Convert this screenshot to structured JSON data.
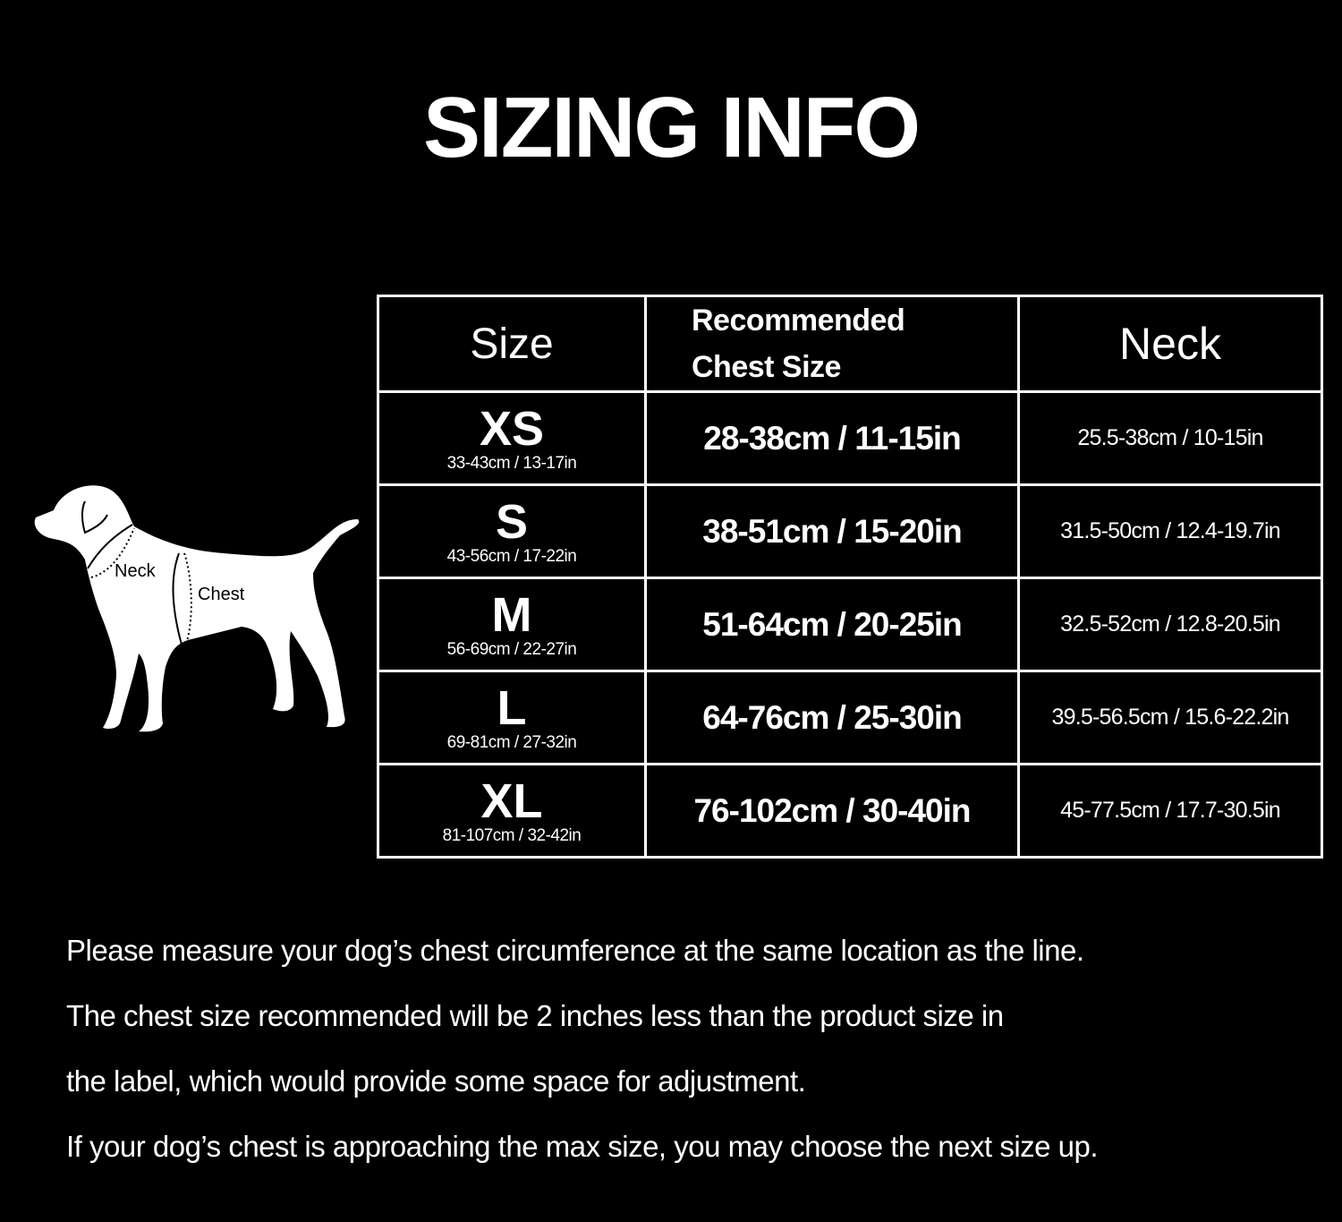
{
  "title": "SIZING INFO",
  "diagram": {
    "neck_label": "Neck",
    "chest_label": "Chest"
  },
  "table": {
    "headers": {
      "size": "Size",
      "chest_line1": "Recommended",
      "chest_line2": "Chest Size",
      "neck": "Neck"
    },
    "rows": [
      {
        "size": "XS",
        "product": "33-43cm / 13-17in",
        "chest": "28-38cm / 11-15in",
        "neck": "25.5-38cm / 10-15in"
      },
      {
        "size": "S",
        "product": "43-56cm / 17-22in",
        "chest": "38-51cm / 15-20in",
        "neck": "31.5-50cm / 12.4-19.7in"
      },
      {
        "size": "M",
        "product": "56-69cm / 22-27in",
        "chest": "51-64cm / 20-25in",
        "neck": "32.5-52cm / 12.8-20.5in"
      },
      {
        "size": "L",
        "product": "69-81cm / 27-32in",
        "chest": "64-76cm / 25-30in",
        "neck": "39.5-56.5cm / 15.6-22.2in"
      },
      {
        "size": "XL",
        "product": "81-107cm / 32-42in",
        "chest": "76-102cm / 30-40in",
        "neck": "45-77.5cm / 17.7-30.5in"
      }
    ]
  },
  "notes": [
    "Please measure your dog’s chest circumference at the same location as the line.",
    "The chest size recommended will be 2 inches less than the product size in",
    "the label, which would provide some space for adjustment.",
    "If your dog’s chest is approaching the max size, you may choose the next size up."
  ]
}
